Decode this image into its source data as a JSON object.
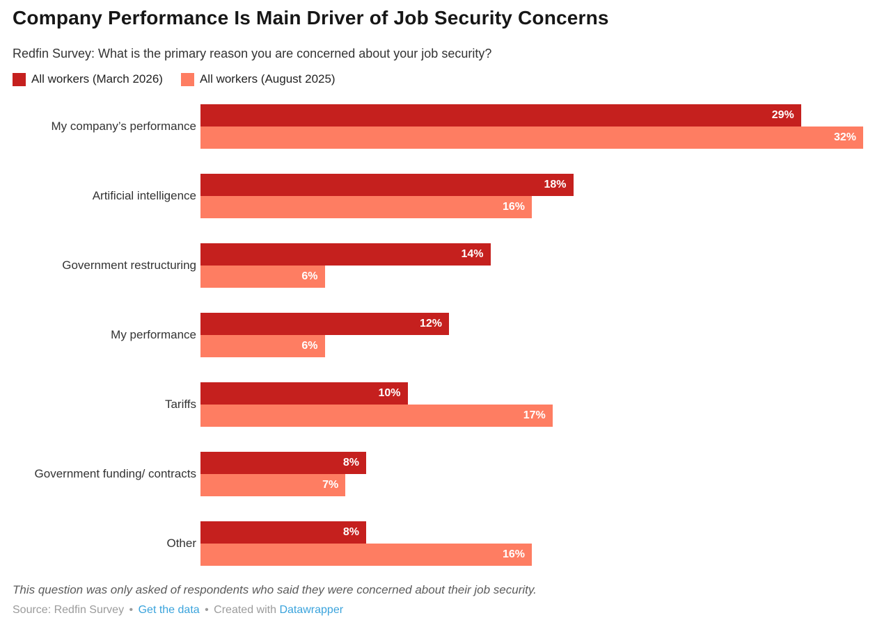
{
  "header": {
    "title": "Company Performance Is Main Driver of Job Security Concerns",
    "subtitle": "Redfin Survey: What is the primary reason you are concerned about your job security?"
  },
  "legend": {
    "items": [
      {
        "label": "All workers (March 2026)",
        "color": "#c5201e"
      },
      {
        "label": "All workers (August 2025)",
        "color": "#fe7d62"
      }
    ]
  },
  "chart_data": {
    "type": "bar",
    "orientation": "horizontal",
    "title": "Company Performance Is Main Driver of Job Security Concerns",
    "subtitle": "Redfin Survey: What is the primary reason you are concerned about your job security?",
    "categories": [
      "My company’s performance",
      "Artificial intelligence",
      "Government restructuring",
      "My performance",
      "Tariffs",
      "Government funding/ contracts",
      "Other"
    ],
    "series": [
      {
        "name": "All workers (March 2026)",
        "color": "#c5201e",
        "values": [
          29,
          18,
          14,
          12,
          10,
          8,
          8
        ]
      },
      {
        "name": "All workers (August 2025)",
        "color": "#fe7d62",
        "values": [
          32,
          16,
          6,
          6,
          17,
          7,
          16
        ]
      }
    ],
    "value_suffix": "%",
    "xlim": [
      0,
      32
    ],
    "grid": false,
    "legend_position": "top",
    "value_labels": "inside-end"
  },
  "footer": {
    "note": "This question was only asked of respondents who said they were concerned about their job security.",
    "source_prefix": "Source: Redfin Survey",
    "separator": "•",
    "get_data_label": "Get the data",
    "created_with_label": "Created with",
    "datawrapper_label": "Datawrapper",
    "link_color": "#3aa3dc"
  }
}
